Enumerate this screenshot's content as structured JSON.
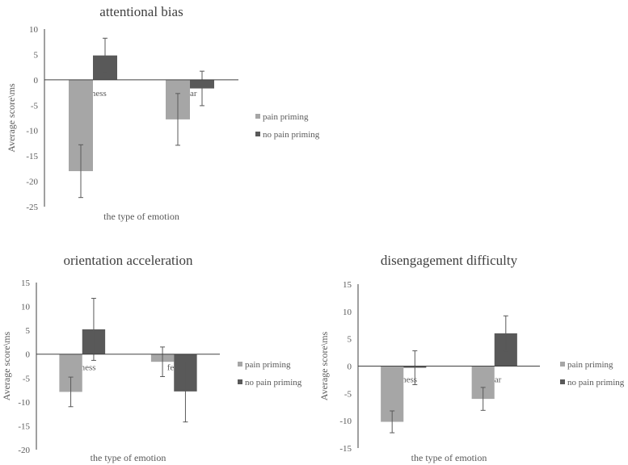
{
  "chart_data": [
    {
      "type": "bar",
      "title": "attentional bias",
      "xlabel": "the type of emotion",
      "ylabel": "Average score\\ms",
      "ylim": [
        -25,
        10
      ],
      "yticks": [
        10,
        5,
        0,
        -5,
        -10,
        -15,
        -20,
        -25
      ],
      "categories": [
        "sadness",
        "fear"
      ],
      "legend_position": "right",
      "series": [
        {
          "name": "pain priming",
          "color": "#a6a6a6",
          "values": [
            -18.0,
            -7.8
          ],
          "errors": [
            5.2,
            5.1
          ]
        },
        {
          "name": "no pain priming",
          "color": "#595959",
          "values": [
            4.8,
            -1.7
          ],
          "errors": [
            3.4,
            3.4
          ]
        }
      ]
    },
    {
      "type": "bar",
      "title": "orientation acceleration",
      "xlabel": "the type of emotion",
      "ylabel": "Average score\\ms",
      "ylim": [
        -20,
        15
      ],
      "yticks": [
        15,
        10,
        5,
        0,
        -5,
        -10,
        -15,
        -20
      ],
      "categories": [
        "sadness",
        "fear"
      ],
      "legend_position": "right",
      "series": [
        {
          "name": "pain priming",
          "color": "#a6a6a6",
          "values": [
            -7.9,
            -1.6
          ],
          "errors": [
            3.1,
            3.1
          ]
        },
        {
          "name": "no pain priming",
          "color": "#595959",
          "values": [
            5.2,
            -7.8
          ],
          "errors": [
            6.5,
            6.4
          ]
        }
      ]
    },
    {
      "type": "bar",
      "title": "disengagement difficulty",
      "xlabel": "the type of emotion",
      "ylabel": "Average score\\ms",
      "ylim": [
        -15,
        15
      ],
      "yticks": [
        15,
        10,
        5,
        0,
        -5,
        -10,
        -15
      ],
      "categories": [
        "sadness",
        "fear"
      ],
      "legend_position": "right",
      "series": [
        {
          "name": "pain priming",
          "color": "#a6a6a6",
          "values": [
            -10.2,
            -6.0
          ],
          "errors": [
            2.0,
            2.1
          ]
        },
        {
          "name": "no pain priming",
          "color": "#595959",
          "values": [
            -0.3,
            6.0
          ],
          "errors": [
            3.1,
            3.2
          ]
        }
      ]
    }
  ]
}
